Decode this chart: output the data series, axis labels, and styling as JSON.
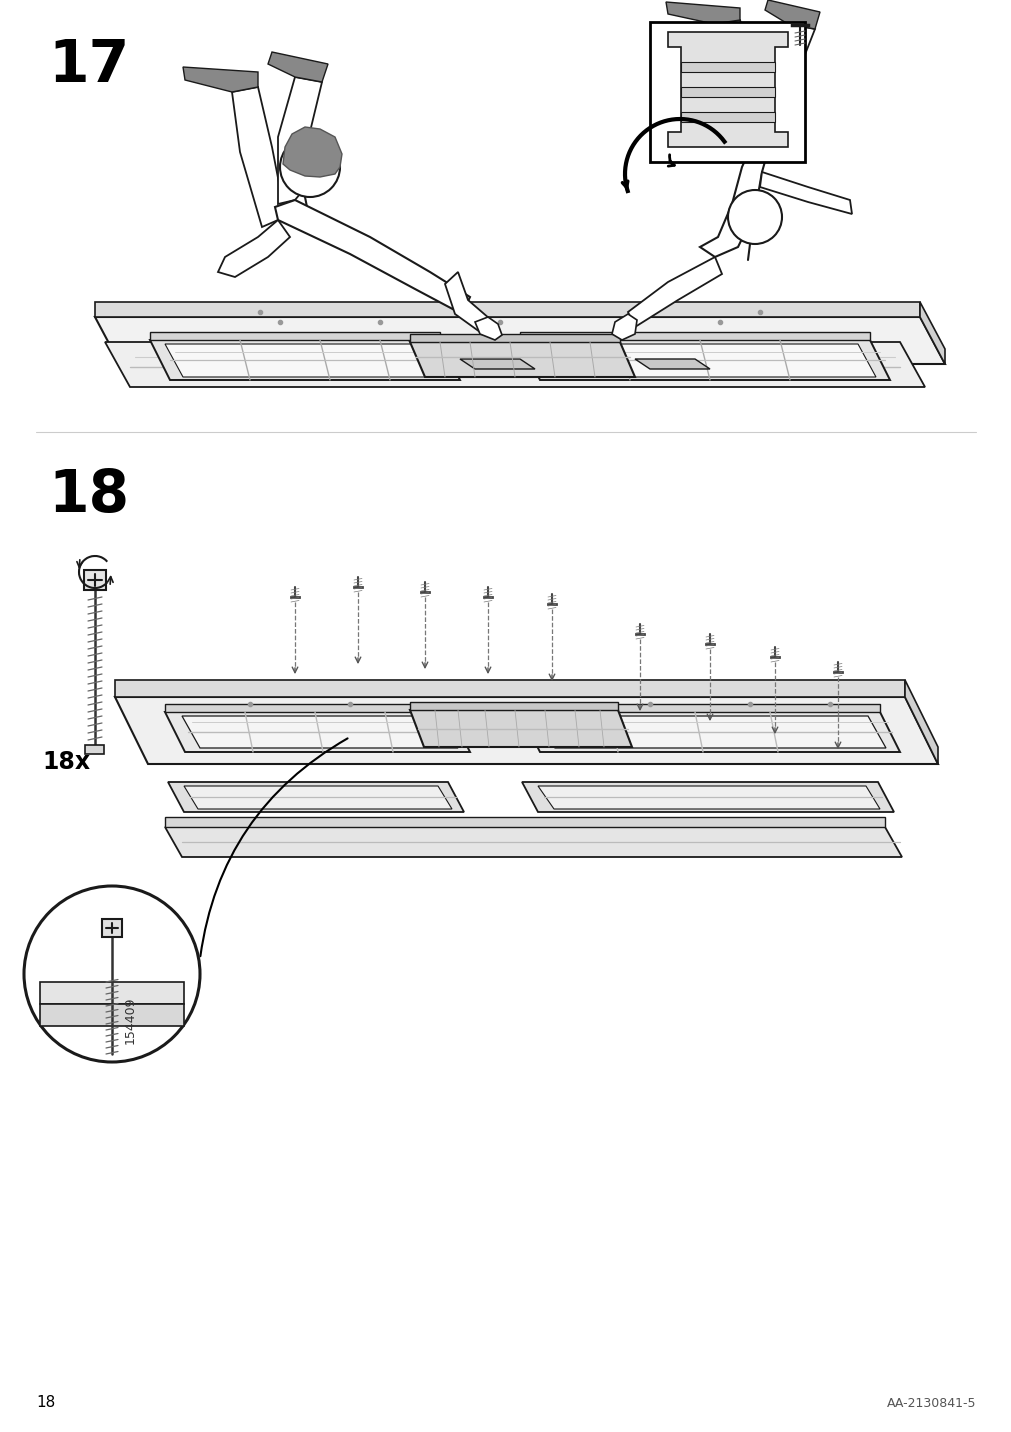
{
  "page_number": "18",
  "doc_id": "AA-2130841-5",
  "background_color": "#ffffff",
  "step17_label": "17",
  "step18_label": "18",
  "screw_count": "18x",
  "part_number": "154409",
  "line_color": "#1a1a1a",
  "line_width": 1.2,
  "fill_color": "#ffffff",
  "gray_fill": "#e8e8e8",
  "light_gray": "#f0f0f0",
  "dark_gray": "#c0c0c0",
  "page_num_text": "18",
  "doc_id_text": "AA-2130841-5"
}
